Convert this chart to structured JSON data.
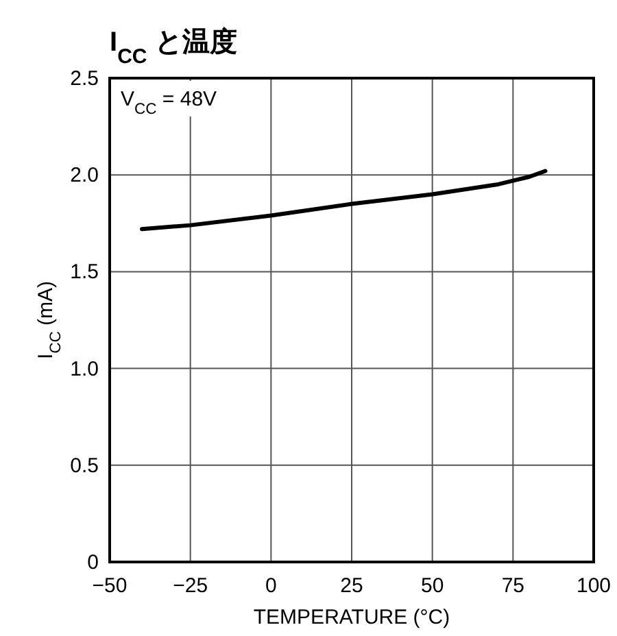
{
  "chart_data": {
    "type": "line",
    "title": "I$_{CC}$ と温度",
    "xlabel": "TEMPERATURE (°C)",
    "ylabel": "I$_{CC}$ (mA)",
    "annotations": [
      "V$_{CC}$ = 48V"
    ],
    "series": [
      {
        "color": "#000000",
        "x": [
          -40,
          -25,
          0,
          25,
          50,
          70,
          75,
          80,
          85
        ],
        "values": [
          1.72,
          1.74,
          1.79,
          1.85,
          1.9,
          1.95,
          1.97,
          1.99,
          2.02
        ]
      }
    ],
    "xlim": [
      -50,
      100
    ],
    "ylim": [
      0,
      2.5
    ],
    "xticks": [
      {
        "value": -50,
        "label": "−50"
      },
      {
        "value": -25,
        "label": "−25"
      },
      0,
      25,
      50,
      75,
      100
    ],
    "yticks": [
      0,
      {
        "value": 0.5,
        "label": "0.5"
      },
      {
        "value": 1,
        "label": "1.0"
      },
      {
        "value": 1.5,
        "label": "1.5"
      },
      {
        "value": 2,
        "label": "2.0"
      },
      {
        "value": 2.5,
        "label": "2.5"
      }
    ],
    "grid": true,
    "line_style": "solid"
  }
}
